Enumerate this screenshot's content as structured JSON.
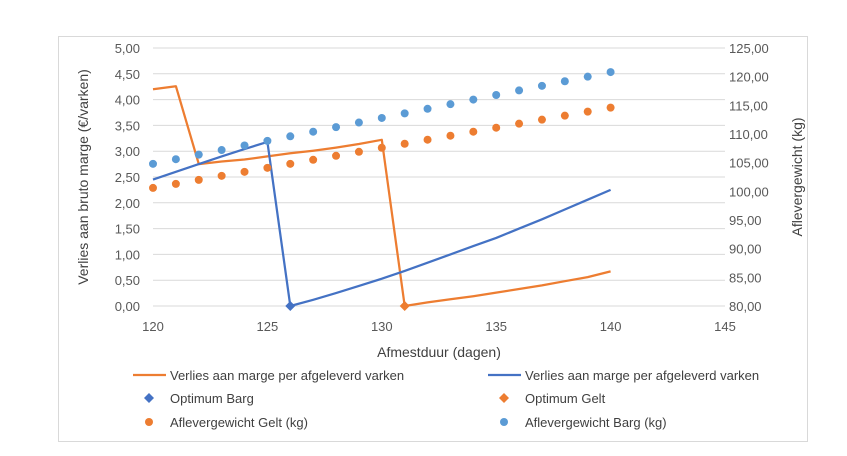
{
  "chart_data": {
    "type": "line",
    "title": "",
    "xlabel": "Afmestduur (dagen)",
    "ylabel": "Verlies aan bruto marge (€/varken)",
    "y2label": "Aflevergewicht (kg)",
    "xlim": [
      120,
      145
    ],
    "ylim": [
      0,
      5
    ],
    "y2lim": [
      80,
      125
    ],
    "x_ticks": [
      "120",
      "125",
      "130",
      "135",
      "140",
      "145"
    ],
    "y_ticks": [
      "0,00",
      "0,50",
      "1,00",
      "1,50",
      "2,00",
      "2,50",
      "3,00",
      "3,50",
      "4,00",
      "4,50",
      "5,00"
    ],
    "y2_ticks": [
      "80,00",
      "85,00",
      "90,00",
      "95,00",
      "100,00",
      "105,00",
      "110,00",
      "115,00",
      "120,00",
      "125,00"
    ],
    "grid": "horizontal",
    "legend_position": "bottom",
    "colors": {
      "orange": "#ED7D31",
      "blue": "#4472C4",
      "lightblue": "#5B9BD5",
      "grid": "#d9d9d9"
    },
    "series": [
      {
        "name": "Verlies aan marge per afgeleverd varken",
        "kind": "line",
        "axis": "left",
        "color": "#ED7D31",
        "x": [
          120,
          121,
          122,
          123,
          124,
          125,
          126,
          127,
          128,
          129,
          130,
          131,
          132,
          133,
          134,
          135,
          136,
          137,
          138,
          139,
          140
        ],
        "values": [
          4.2,
          4.26,
          2.75,
          2.8,
          2.84,
          2.9,
          2.96,
          3.01,
          3.07,
          3.14,
          3.22,
          0.0,
          0.07,
          0.13,
          0.19,
          0.26,
          0.33,
          0.4,
          0.48,
          0.56,
          0.67
        ]
      },
      {
        "name": "Verlies aan marge per afgeleverd varken",
        "kind": "line",
        "axis": "left",
        "color": "#4472C4",
        "x": [
          120,
          121,
          122,
          123,
          124,
          125,
          126,
          127,
          128,
          129,
          130,
          131,
          132,
          133,
          134,
          135,
          136,
          137,
          138,
          139,
          140
        ],
        "values": [
          2.45,
          2.6,
          2.75,
          2.9,
          3.04,
          3.18,
          0.0,
          0.12,
          0.25,
          0.39,
          0.53,
          0.68,
          0.84,
          1.0,
          1.16,
          1.32,
          1.5,
          1.68,
          1.87,
          2.06,
          2.25
        ]
      },
      {
        "name": "Optimum Barg",
        "kind": "marker",
        "marker": "diamond",
        "axis": "left",
        "color": "#4472C4",
        "x": [
          126
        ],
        "values": [
          0.0
        ]
      },
      {
        "name": "Optimum Gelt",
        "kind": "marker",
        "marker": "diamond",
        "axis": "left",
        "color": "#ED7D31",
        "x": [
          131
        ],
        "values": [
          0.0
        ]
      },
      {
        "name": "Aflevergewicht  Gelt (kg)",
        "kind": "marker",
        "marker": "circle",
        "axis": "right",
        "color": "#ED7D31",
        "x": [
          120,
          121,
          122,
          123,
          124,
          125,
          126,
          127,
          128,
          129,
          130,
          131,
          132,
          133,
          134,
          135,
          136,
          137,
          138,
          139,
          140
        ],
        "values": [
          100.6,
          101.3,
          102.0,
          102.7,
          103.4,
          104.1,
          104.8,
          105.5,
          106.2,
          106.9,
          107.6,
          108.3,
          109.0,
          109.7,
          110.4,
          111.1,
          111.8,
          112.5,
          113.2,
          113.9,
          114.6
        ]
      },
      {
        "name": "Aflevergewicht Barg (kg)",
        "kind": "marker",
        "marker": "circle",
        "axis": "right",
        "color": "#5B9BD5",
        "x": [
          120,
          121,
          122,
          123,
          124,
          125,
          126,
          127,
          128,
          129,
          130,
          131,
          132,
          133,
          134,
          135,
          136,
          137,
          138,
          139,
          140
        ],
        "values": [
          104.8,
          105.6,
          106.4,
          107.2,
          108.0,
          108.8,
          109.6,
          110.4,
          111.2,
          112.0,
          112.8,
          113.6,
          114.4,
          115.2,
          116.0,
          116.8,
          117.6,
          118.4,
          119.2,
          120.0,
          120.8
        ]
      }
    ],
    "legend": [
      {
        "label": "Verlies aan marge per afgeleverd varken",
        "symbol": "line",
        "color": "#ED7D31"
      },
      {
        "label": "Verlies aan marge per afgeleverd varken",
        "symbol": "line",
        "color": "#4472C4"
      },
      {
        "label": "Optimum Barg",
        "symbol": "diamond",
        "color": "#4472C4"
      },
      {
        "label": "Optimum Gelt",
        "symbol": "diamond",
        "color": "#ED7D31"
      },
      {
        "label": "Aflevergewicht  Gelt (kg)",
        "symbol": "circle",
        "color": "#ED7D31"
      },
      {
        "label": "Aflevergewicht Barg (kg)",
        "symbol": "circle",
        "color": "#5B9BD5"
      }
    ]
  }
}
